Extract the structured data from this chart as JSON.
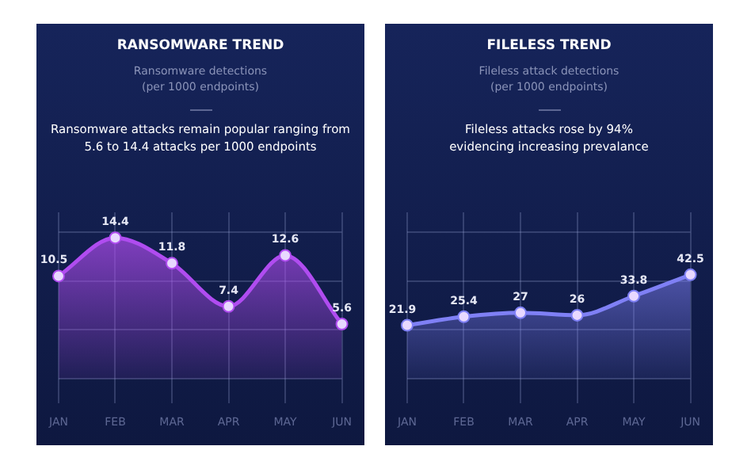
{
  "chart_data": [
    {
      "type": "area",
      "title": "RANSOMWARE TREND",
      "subtitle": "Ransomware detections\n(per 1000 endpoints)",
      "annotations": [
        "Ransomware attacks remain popular ranging from 5.6 to 14.4 attacks per 1000 endpoints"
      ],
      "categories": [
        "JAN",
        "FEB",
        "MAR",
        "APR",
        "MAY",
        "JUN"
      ],
      "series": [
        {
          "color": "#b04cf0",
          "values": [
            10.5,
            14.4,
            11.8,
            7.4,
            12.6,
            5.6
          ]
        }
      ],
      "ylim": [
        -2.5,
        17
      ],
      "yticks": [
        {
          "value": 0,
          "label": null
        },
        {
          "value": 5,
          "label": null
        },
        {
          "value": 10,
          "label": null
        },
        {
          "value": 15,
          "label": null
        }
      ],
      "tick_labels": "x",
      "grid": true,
      "data_labels": true,
      "marker": "circle",
      "legend": false
    },
    {
      "type": "area",
      "title": "FILELESS TREND",
      "subtitle": "Fileless attack detections\n(per 1000 endpoints)",
      "annotations": [
        "Fileless attacks rose by 94%\nevidencing increasing prevalance"
      ],
      "categories": [
        "JAN",
        "FEB",
        "MAR",
        "APR",
        "MAY",
        "JUN"
      ],
      "series": [
        {
          "color": "#7f80f5",
          "values": [
            21.9,
            25.4,
            27,
            26,
            33.8,
            42.5
          ]
        }
      ],
      "ylim": [
        -10,
        68
      ],
      "yticks": [
        {
          "value": 0,
          "label": null
        },
        {
          "value": 20,
          "label": null
        },
        {
          "value": 40,
          "label": null
        },
        {
          "value": 60,
          "label": null
        }
      ],
      "tick_labels": "x",
      "grid": true,
      "data_labels": true,
      "marker": "circle",
      "legend": false
    }
  ]
}
